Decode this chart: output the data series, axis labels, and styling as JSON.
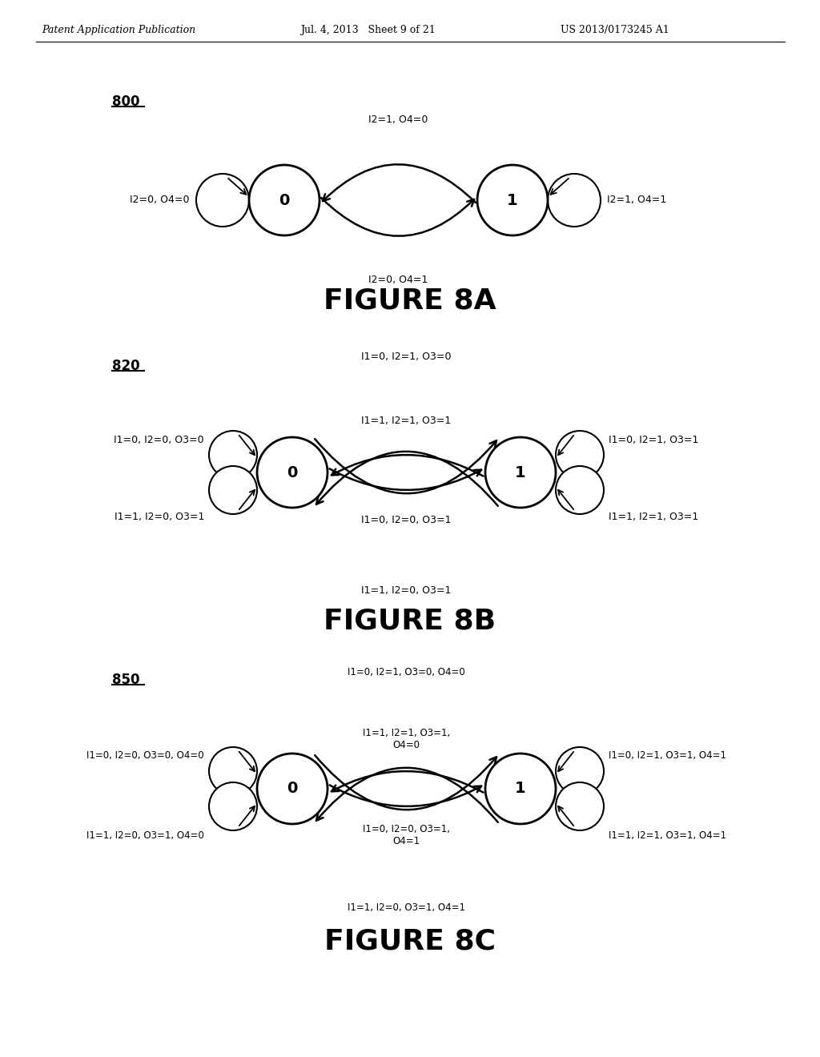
{
  "header_left": "Patent Application Publication",
  "header_mid": "Jul. 4, 2013   Sheet 9 of 21",
  "header_right": "US 2013/0173245 A1",
  "fig8a_label": "800",
  "fig8a_caption": "FIGURE 8A",
  "fig8b_label": "820",
  "fig8b_caption": "FIGURE 8B",
  "fig8c_label": "850",
  "fig8c_caption": "FIGURE 8C",
  "fig8a": {
    "self_loop0_label": "I2=0, O4=0",
    "self_loop1_label": "I2=1, O4=1",
    "top_arrow_label": "I2=1, O4=0",
    "bot_arrow_label": "I2=0, O4=1"
  },
  "fig8b": {
    "self_loop0_top_label": "I1=0, I2=0, O3=0",
    "self_loop1_top_label": "I1=0, I2=1, O3=1",
    "top_arrow_label": "I1=0, I2=1, O3=0",
    "bot_arrow_label": "I1=1, I2=0, O3=1",
    "inner_top_label": "I1=1, I2=1, O3=1",
    "inner_bot_label": "I1=0, I2=0, O3=1",
    "self_loop0_bot_label": "I1=1, I2=0, O3=1",
    "self_loop1_bot_label": "I1=1, I2=1, O3=1"
  },
  "fig8c": {
    "self_loop0_top_label": "I1=0, I2=0, O3=0, O4=0",
    "self_loop1_top_label": "I1=0, I2=1, O3=1, O4=1",
    "top_arrow_label": "I1=0, I2=1, O3=0, O4=0",
    "bot_arrow_label": "I1=1, I2=0, O3=1, O4=1",
    "inner_top_label": "I1=1, I2=1, O3=1,\nO4=0",
    "inner_bot_label": "I1=0, I2=0, O3=1,\nO4=1",
    "self_loop0_bot_label": "I1=1, I2=0, O3=1, O4=0",
    "self_loop1_bot_label": "I1=1, I2=1, O3=1, O4=1"
  }
}
